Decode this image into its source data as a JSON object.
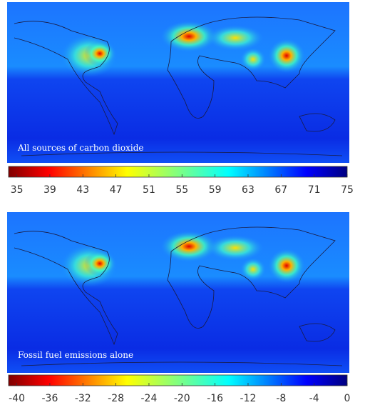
{
  "panels": [
    {
      "label": "All sources of carbon dioxide",
      "colorbar": {
        "lim": [
          34,
          75
        ],
        "ticks": [
          35,
          39,
          43,
          47,
          51,
          55,
          59,
          63,
          67,
          71,
          75
        ]
      }
    },
    {
      "label": "Fossil fuel emissions alone",
      "colorbar": {
        "lim": [
          -41,
          0
        ],
        "ticks": [
          -40,
          -36,
          -32,
          -28,
          -24,
          -20,
          -16,
          -12,
          -8,
          -4,
          0
        ]
      }
    }
  ]
}
